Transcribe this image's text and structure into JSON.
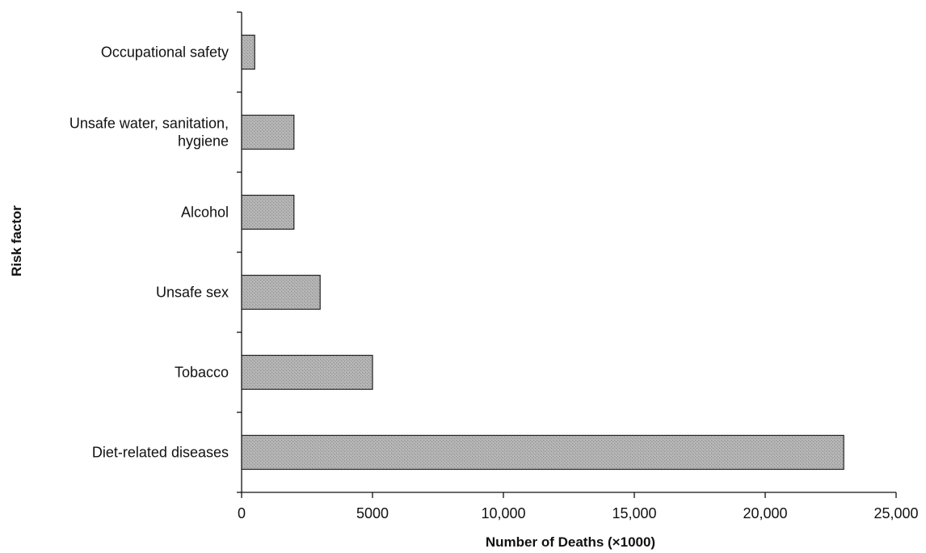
{
  "chart_data": {
    "type": "bar",
    "orientation": "horizontal",
    "categories": [
      "Occupational safety",
      "Unsafe water, sanitation, hygiene",
      "Alcohol",
      "Unsafe sex",
      "Tobacco",
      "Diet-related diseases"
    ],
    "category_display": [
      [
        "Occupational safety"
      ],
      [
        "Unsafe water, sanitation,",
        "hygiene"
      ],
      [
        "Alcohol"
      ],
      [
        "Unsafe sex"
      ],
      [
        "Tobacco"
      ],
      [
        "Diet-related diseases"
      ]
    ],
    "values": [
      500,
      2000,
      2000,
      3000,
      5000,
      23000
    ],
    "xlabel": "Number of Deaths (×1000)",
    "ylabel": "Risk factor",
    "xlim": [
      0,
      25000
    ],
    "xticks": [
      0,
      5000,
      10000,
      15000,
      20000,
      25000
    ],
    "xtick_labels": [
      "0",
      "5000",
      "10,000",
      "15,000",
      "20,000",
      "25,000"
    ],
    "grid": false,
    "legend": "none",
    "bar_color": "#a8a8a8"
  }
}
